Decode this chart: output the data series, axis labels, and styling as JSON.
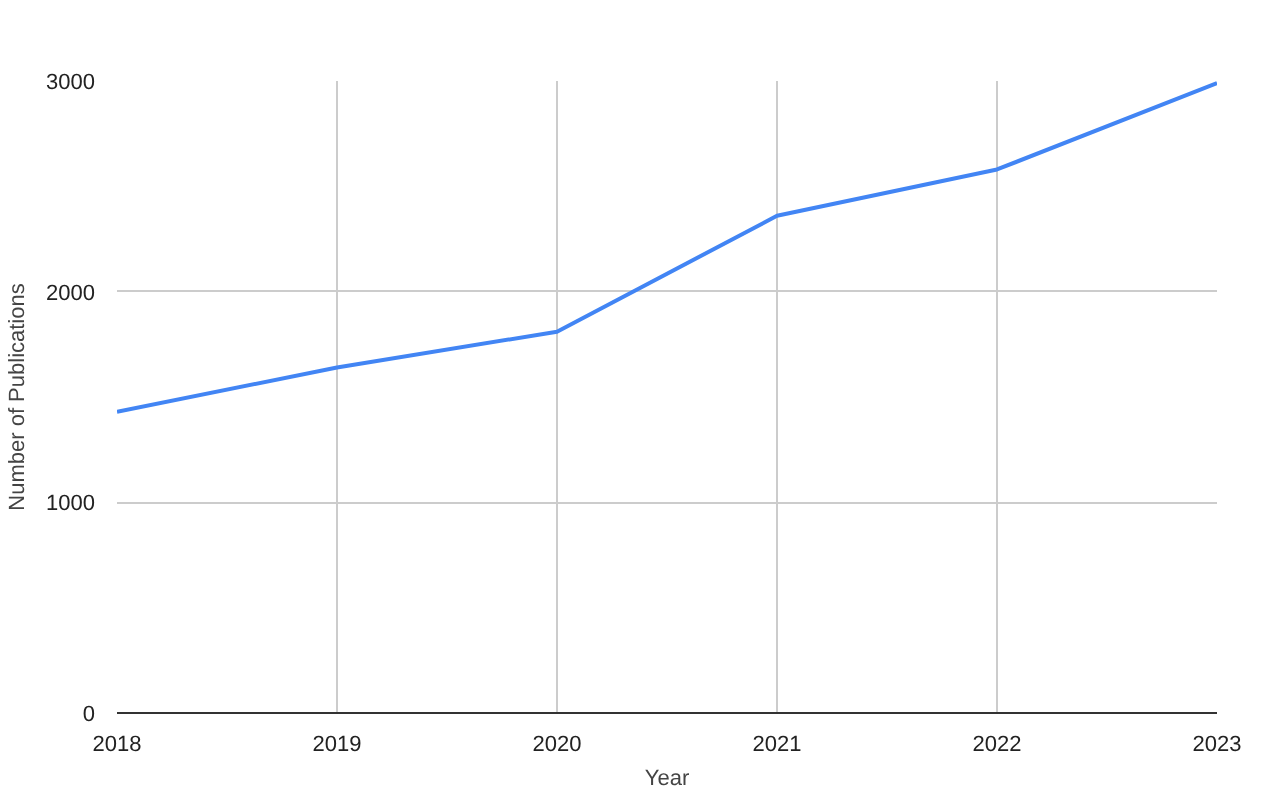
{
  "chart_data": {
    "type": "line",
    "xlabel": "Year",
    "ylabel": "Number of Publications",
    "x": [
      2018,
      2019,
      2020,
      2021,
      2022,
      2023
    ],
    "series": [
      {
        "color": "#4285f4",
        "values": [
          1430,
          1640,
          1810,
          2360,
          2580,
          2990
        ]
      }
    ],
    "xlim": [
      2018,
      2023
    ],
    "xticks": [
      2018,
      2019,
      2020,
      2021,
      2022,
      2023
    ],
    "ylim": [
      0,
      3000
    ],
    "yticks": [
      0,
      1000,
      2000,
      3000
    ],
    "grid": true,
    "marker": "none",
    "line_style": "solid"
  }
}
